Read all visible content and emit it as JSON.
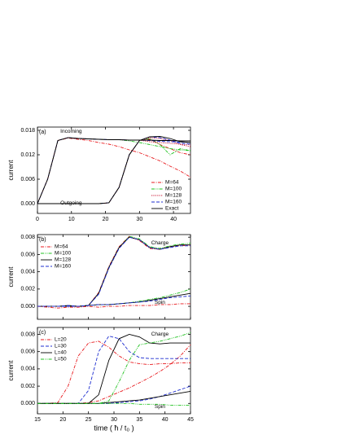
{
  "chart_data": [
    {
      "type": "line",
      "label": "(a)",
      "ylabel": "current",
      "annotations": [
        "Incoming",
        "Outgoing"
      ],
      "x": [
        0,
        3,
        6,
        9,
        12,
        15,
        18,
        21,
        24,
        27,
        30,
        33,
        36,
        39,
        42,
        45
      ],
      "xlim": [
        0,
        45
      ],
      "xticks": [
        0,
        10,
        20,
        30,
        40
      ],
      "xtick_labels": true,
      "ylim": [
        -0.0024,
        0.0188
      ],
      "yticks": [
        {
          "value": 0,
          "label": "0.000"
        },
        0.006,
        0.012,
        0.018
      ],
      "legend": "lower right",
      "series": [
        {
          "name": "M=64",
          "color": "#e8191d",
          "dash": "dash-dot",
          "values": [
            [
              0,
              0.006,
              0.0155,
              0.0161,
              0.0158,
              0.0155,
              0.015,
              0.0146,
              0.014,
              0.0132,
              0.0125,
              0.0115,
              0.0105,
              0.0092,
              0.008,
              0.0065
            ],
            [
              0,
              0,
              0,
              0,
              0,
              0,
              0,
              0.0002,
              0.004,
              0.012,
              0.0155,
              0.0158,
              0.0145,
              0.0135,
              0.0125,
              0.012
            ]
          ]
        },
        {
          "name": "M=100",
          "color": "#22c322",
          "dash": "dash-dot-dot",
          "values": [
            [
              0,
              0.006,
              0.0155,
              0.0162,
              0.016,
              0.0159,
              0.0158,
              0.0157,
              0.0157,
              0.0154,
              0.015,
              0.0145,
              0.014,
              0.0135,
              0.0132,
              0.013
            ],
            [
              0,
              0,
              0,
              0,
              0,
              0,
              0,
              0.0002,
              0.004,
              0.012,
              0.0155,
              0.016,
              0.0145,
              0.012,
              0.0135,
              0.013
            ]
          ]
        },
        {
          "name": "M=128",
          "color": "#c8102e",
          "dash": "dot",
          "values": [
            [
              0,
              0.006,
              0.0155,
              0.0162,
              0.016,
              0.0159,
              0.0158,
              0.0157,
              0.0157,
              0.0156,
              0.0156,
              0.0152,
              0.015,
              0.0148,
              0.0146,
              0.0145
            ],
            [
              0,
              0,
              0,
              0,
              0,
              0,
              0,
              0.0002,
              0.004,
              0.012,
              0.0155,
              0.0162,
              0.016,
              0.0155,
              0.0145,
              0.014
            ]
          ]
        },
        {
          "name": "M=160",
          "color": "#1f2fd0",
          "dash": "dash",
          "values": [
            [
              0,
              0.006,
              0.0155,
              0.0162,
              0.016,
              0.0159,
              0.0158,
              0.0157,
              0.0157,
              0.0156,
              0.0156,
              0.0155,
              0.0153,
              0.0152,
              0.0151,
              0.015
            ],
            [
              0,
              0,
              0,
              0,
              0,
              0,
              0,
              0.0002,
              0.004,
              0.012,
              0.0155,
              0.0164,
              0.0162,
              0.0156,
              0.0148,
              0.0146
            ]
          ]
        },
        {
          "name": "Exact",
          "color": "#000000",
          "dash": "solid",
          "values": [
            [
              0,
              0.006,
              0.0155,
              0.0162,
              0.016,
              0.0159,
              0.0158,
              0.0157,
              0.0157,
              0.0156,
              0.0156,
              0.0156,
              0.0155,
              0.0155,
              0.0154,
              0.0154
            ],
            [
              0,
              0,
              0,
              0,
              0,
              0,
              0,
              0.0002,
              0.004,
              0.012,
              0.0155,
              0.0164,
              0.0165,
              0.016,
              0.0152,
              0.015
            ]
          ]
        }
      ]
    },
    {
      "type": "line",
      "label": "(b)",
      "ylabel": "current",
      "annotations": [
        "Charge",
        "Spin"
      ],
      "x": [
        15,
        17,
        19,
        21,
        23,
        25,
        27,
        29,
        31,
        33,
        35,
        37,
        39,
        41,
        43,
        45
      ],
      "xlim": [
        15,
        45
      ],
      "xticks": [
        15,
        20,
        25,
        30,
        35,
        40,
        45
      ],
      "xtick_labels": false,
      "ylim": [
        -0.0015,
        0.0083
      ],
      "yticks": [
        {
          "value": 0,
          "label": "0.000"
        },
        0.002,
        0.004,
        0.006,
        0.008
      ],
      "legend": "upper left",
      "series": [
        {
          "name": "M=64",
          "color": "#e8191d",
          "dash": "dash-dot",
          "values": [
            [
              0,
              0,
              0,
              0,
              0,
              0.0001,
              0.0016,
              0.0046,
              0.0069,
              0.0081,
              0.0076,
              0.0067,
              0.0066,
              0.0069,
              0.007,
              0.0071
            ],
            [
              0,
              -0.0001,
              -0.0002,
              -0.0001,
              -0.0001,
              0,
              -0.0001,
              0,
              0,
              0.0001,
              0.0001,
              0.0001,
              0.0002,
              0.0002,
              0.0003,
              0.0003
            ]
          ]
        },
        {
          "name": "M=100",
          "color": "#22c322",
          "dash": "dash-dot-dot",
          "values": [
            [
              0,
              0,
              0,
              0,
              0,
              0.0001,
              0.0015,
              0.0045,
              0.0068,
              0.0081,
              0.0078,
              0.0069,
              0.0067,
              0.007,
              0.0072,
              0.0073
            ],
            [
              0,
              0,
              0,
              0.0001,
              0,
              0.0001,
              0.0002,
              0.0002,
              0.0003,
              0.0004,
              0.0006,
              0.0008,
              0.001,
              0.0013,
              0.0016,
              0.002
            ]
          ]
        },
        {
          "name": "M=128",
          "color": "#000000",
          "dash": "solid",
          "values": [
            [
              0,
              0,
              0,
              0,
              0,
              0.0001,
              0.0015,
              0.0045,
              0.0068,
              0.008,
              0.0077,
              0.0068,
              0.0066,
              0.0069,
              0.0071,
              0.0071
            ],
            [
              0,
              0,
              0,
              0.0001,
              0,
              0.0001,
              0.0002,
              0.0002,
              0.0003,
              0.0004,
              0.0005,
              0.0007,
              0.0009,
              0.0011,
              0.0013,
              0.0015
            ]
          ]
        },
        {
          "name": "M=160",
          "color": "#1f2fd0",
          "dash": "dash",
          "values": [
            [
              0,
              0,
              0,
              0,
              0,
              0.0001,
              0.0014,
              0.0044,
              0.0067,
              0.008,
              0.0077,
              0.0068,
              0.0066,
              0.0068,
              0.007,
              0.007
            ],
            [
              0,
              0,
              0,
              0.0001,
              0,
              0.0001,
              0.0002,
              0.0002,
              0.0003,
              0.0004,
              0.0005,
              0.0006,
              0.0008,
              0.001,
              0.0011,
              0.0012
            ]
          ]
        }
      ]
    },
    {
      "type": "line",
      "label": "(c)",
      "ylabel": "current",
      "xlabel": "time ( ħ / t₀ )",
      "annotations": [
        "Charge",
        "Spin"
      ],
      "x": [
        15,
        17,
        19,
        21,
        23,
        25,
        27,
        29,
        31,
        33,
        35,
        37,
        39,
        41,
        43,
        45
      ],
      "xlim": [
        15,
        45
      ],
      "xticks": [
        15,
        20,
        25,
        30,
        35,
        40,
        45
      ],
      "xtick_labels": true,
      "ylim": [
        -0.0012,
        0.0088
      ],
      "yticks": [
        {
          "value": 0,
          "label": "0.000"
        },
        0.002,
        0.004,
        0.006,
        0.008
      ],
      "legend": "upper left",
      "series": [
        {
          "name": "L=20",
          "color": "#e8191d",
          "dash": "dash-dot",
          "values": [
            [
              0,
              0,
              0.0001,
              0.002,
              0.0055,
              0.007,
              0.0072,
              0.0065,
              0.0055,
              0.0048,
              0.0046,
              0.0045,
              0.0046,
              0.0046,
              0.0047,
              0.0047
            ],
            [
              0,
              0,
              0,
              0,
              0,
              0.0001,
              0.0003,
              0.0008,
              0.0013,
              0.0018,
              0.0024,
              0.003,
              0.0037,
              0.0045,
              0.0055,
              0.0068
            ]
          ]
        },
        {
          "name": "L=30",
          "color": "#1f2fd0",
          "dash": "dash",
          "values": [
            [
              0,
              0,
              0,
              0,
              0,
              0.0015,
              0.006,
              0.0078,
              0.0075,
              0.006,
              0.0053,
              0.0052,
              0.0052,
              0.0052,
              0.0052,
              0.0052
            ],
            [
              0,
              0,
              0,
              0,
              0,
              0,
              0,
              0,
              0.0001,
              0.0002,
              0.0003,
              0.0005,
              0.0008,
              0.0012,
              0.0016,
              0.002
            ]
          ]
        },
        {
          "name": "L=40",
          "color": "#000000",
          "dash": "solid",
          "values": [
            [
              0,
              0,
              0,
              0,
              0,
              0,
              0.001,
              0.005,
              0.0075,
              0.008,
              0.0077,
              0.007,
              0.0069,
              0.007,
              0.007,
              0.007
            ],
            [
              0,
              0,
              0,
              0,
              0,
              0,
              0,
              0.0001,
              0.0002,
              0.0003,
              0.0004,
              0.0006,
              0.0008,
              0.001,
              0.0012,
              0.0014
            ]
          ]
        },
        {
          "name": "L=50",
          "color": "#22c322",
          "dash": "dash-dot-dot",
          "values": [
            [
              0,
              0,
              0,
              0,
              0,
              0,
              0,
              0.0003,
              0.0025,
              0.005,
              0.0068,
              0.007,
              0.0072,
              0.0075,
              0.0078,
              0.0082
            ],
            [
              0,
              0,
              0,
              0,
              0,
              0,
              0,
              0,
              0,
              0,
              -0.0001,
              -0.0001,
              -0.0001,
              -0.0002,
              -0.0002,
              -0.0002
            ]
          ]
        }
      ]
    }
  ]
}
